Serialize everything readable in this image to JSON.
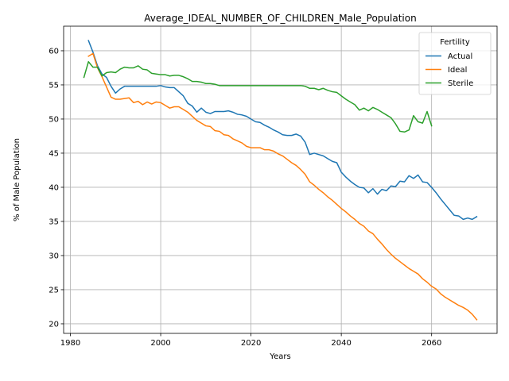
{
  "chart_data": {
    "type": "line",
    "title": "Average_IDEAL_NUMBER_OF_CHILDREN_Male_Population",
    "xlabel": "Years",
    "ylabel": "% of Male Population",
    "xlim": [
      1978.5,
      2074.5
    ],
    "ylim": [
      18.6,
      63.6
    ],
    "xticks": [
      1980,
      2000,
      2020,
      2040,
      2060
    ],
    "yticks": [
      20,
      25,
      30,
      35,
      40,
      45,
      50,
      55,
      60
    ],
    "grid": true,
    "legend": {
      "title": "Fertility",
      "placement": "top-right"
    },
    "series": [
      {
        "name": "Actual",
        "color": "#1f77b4",
        "points": [
          [
            1984,
            61.5
          ],
          [
            1985,
            59.8
          ],
          [
            1986,
            57.8
          ],
          [
            1987,
            56.6
          ],
          [
            1988,
            56.1
          ],
          [
            1989,
            54.8
          ],
          [
            1990,
            53.8
          ],
          [
            1991,
            54.4
          ],
          [
            1992,
            54.8
          ],
          [
            1993,
            54.8
          ],
          [
            1994,
            54.8
          ],
          [
            1995,
            54.8
          ],
          [
            1996,
            54.8
          ],
          [
            1997,
            54.8
          ],
          [
            1998,
            54.8
          ],
          [
            1999,
            54.8
          ],
          [
            2000,
            54.9
          ],
          [
            2001,
            54.7
          ],
          [
            2002,
            54.6
          ],
          [
            2003,
            54.6
          ],
          [
            2004,
            54.0
          ],
          [
            2005,
            53.4
          ],
          [
            2006,
            52.3
          ],
          [
            2007,
            51.9
          ],
          [
            2008,
            51.0
          ],
          [
            2009,
            51.6
          ],
          [
            2010,
            51.0
          ],
          [
            2011,
            50.8
          ],
          [
            2012,
            51.1
          ],
          [
            2013,
            51.1
          ],
          [
            2014,
            51.1
          ],
          [
            2015,
            51.2
          ],
          [
            2016,
            51.0
          ],
          [
            2017,
            50.7
          ],
          [
            2018,
            50.6
          ],
          [
            2019,
            50.4
          ],
          [
            2020,
            50.0
          ],
          [
            2021,
            49.6
          ],
          [
            2022,
            49.5
          ],
          [
            2023,
            49.1
          ],
          [
            2024,
            48.8
          ],
          [
            2025,
            48.4
          ],
          [
            2026,
            48.1
          ],
          [
            2027,
            47.7
          ],
          [
            2028,
            47.6
          ],
          [
            2029,
            47.6
          ],
          [
            2030,
            47.8
          ],
          [
            2031,
            47.5
          ],
          [
            2032,
            46.6
          ],
          [
            2033,
            44.8
          ],
          [
            2034,
            45.0
          ],
          [
            2035,
            44.8
          ],
          [
            2036,
            44.6
          ],
          [
            2037,
            44.2
          ],
          [
            2038,
            43.8
          ],
          [
            2039,
            43.6
          ],
          [
            2040,
            42.2
          ],
          [
            2041,
            41.5
          ],
          [
            2042,
            40.9
          ],
          [
            2043,
            40.4
          ],
          [
            2044,
            40.0
          ],
          [
            2045,
            39.9
          ],
          [
            2046,
            39.2
          ],
          [
            2047,
            39.8
          ],
          [
            2048,
            39.0
          ],
          [
            2049,
            39.7
          ],
          [
            2050,
            39.5
          ],
          [
            2051,
            40.2
          ],
          [
            2052,
            40.1
          ],
          [
            2053,
            40.9
          ],
          [
            2054,
            40.8
          ],
          [
            2055,
            41.7
          ],
          [
            2056,
            41.3
          ],
          [
            2057,
            41.8
          ],
          [
            2058,
            40.8
          ],
          [
            2059,
            40.7
          ],
          [
            2060,
            40.0
          ],
          [
            2061,
            39.2
          ],
          [
            2062,
            38.3
          ],
          [
            2063,
            37.5
          ],
          [
            2064,
            36.7
          ],
          [
            2065,
            35.9
          ],
          [
            2066,
            35.8
          ],
          [
            2067,
            35.3
          ],
          [
            2068,
            35.5
          ],
          [
            2069,
            35.3
          ],
          [
            2070,
            35.7
          ]
        ]
      },
      {
        "name": "Ideal",
        "color": "#ff7f0e",
        "points": [
          [
            1984,
            59.2
          ],
          [
            1985,
            59.6
          ],
          [
            1986,
            57.5
          ],
          [
            1987,
            56.2
          ],
          [
            1988,
            54.7
          ],
          [
            1989,
            53.2
          ],
          [
            1990,
            52.9
          ],
          [
            1991,
            52.9
          ],
          [
            1992,
            53.0
          ],
          [
            1993,
            53.1
          ],
          [
            1994,
            52.4
          ],
          [
            1995,
            52.6
          ],
          [
            1996,
            52.1
          ],
          [
            1997,
            52.5
          ],
          [
            1998,
            52.2
          ],
          [
            1999,
            52.5
          ],
          [
            2000,
            52.4
          ],
          [
            2001,
            52.0
          ],
          [
            2002,
            51.6
          ],
          [
            2003,
            51.8
          ],
          [
            2004,
            51.8
          ],
          [
            2005,
            51.4
          ],
          [
            2006,
            51.0
          ],
          [
            2007,
            50.4
          ],
          [
            2008,
            49.8
          ],
          [
            2009,
            49.4
          ],
          [
            2010,
            49.0
          ],
          [
            2011,
            48.9
          ],
          [
            2012,
            48.3
          ],
          [
            2013,
            48.2
          ],
          [
            2014,
            47.7
          ],
          [
            2015,
            47.6
          ],
          [
            2016,
            47.1
          ],
          [
            2017,
            46.8
          ],
          [
            2018,
            46.5
          ],
          [
            2019,
            46.0
          ],
          [
            2020,
            45.8
          ],
          [
            2021,
            45.8
          ],
          [
            2022,
            45.8
          ],
          [
            2023,
            45.5
          ],
          [
            2024,
            45.5
          ],
          [
            2025,
            45.3
          ],
          [
            2026,
            44.9
          ],
          [
            2027,
            44.6
          ],
          [
            2028,
            44.1
          ],
          [
            2029,
            43.6
          ],
          [
            2030,
            43.2
          ],
          [
            2031,
            42.6
          ],
          [
            2032,
            41.9
          ],
          [
            2033,
            40.8
          ],
          [
            2034,
            40.3
          ],
          [
            2035,
            39.7
          ],
          [
            2036,
            39.2
          ],
          [
            2037,
            38.6
          ],
          [
            2038,
            38.1
          ],
          [
            2039,
            37.5
          ],
          [
            2040,
            36.9
          ],
          [
            2041,
            36.4
          ],
          [
            2042,
            35.8
          ],
          [
            2043,
            35.3
          ],
          [
            2044,
            34.7
          ],
          [
            2045,
            34.3
          ],
          [
            2046,
            33.6
          ],
          [
            2047,
            33.2
          ],
          [
            2048,
            32.4
          ],
          [
            2049,
            31.7
          ],
          [
            2050,
            30.9
          ],
          [
            2051,
            30.2
          ],
          [
            2052,
            29.6
          ],
          [
            2053,
            29.1
          ],
          [
            2054,
            28.6
          ],
          [
            2055,
            28.1
          ],
          [
            2056,
            27.7
          ],
          [
            2057,
            27.3
          ],
          [
            2058,
            26.6
          ],
          [
            2059,
            26.1
          ],
          [
            2060,
            25.5
          ],
          [
            2061,
            25.1
          ],
          [
            2062,
            24.4
          ],
          [
            2063,
            23.9
          ],
          [
            2064,
            23.5
          ],
          [
            2065,
            23.1
          ],
          [
            2066,
            22.7
          ],
          [
            2067,
            22.4
          ],
          [
            2068,
            22.0
          ],
          [
            2069,
            21.4
          ],
          [
            2070,
            20.6
          ]
        ]
      },
      {
        "name": "Sterile",
        "color": "#2ca02c",
        "points": [
          [
            1983,
            56.1
          ],
          [
            1984,
            58.4
          ],
          [
            1985,
            57.6
          ],
          [
            1986,
            57.6
          ],
          [
            1987,
            56.3
          ],
          [
            1988,
            56.8
          ],
          [
            1989,
            56.9
          ],
          [
            1990,
            56.8
          ],
          [
            1991,
            57.3
          ],
          [
            1992,
            57.6
          ],
          [
            1993,
            57.5
          ],
          [
            1994,
            57.5
          ],
          [
            1995,
            57.8
          ],
          [
            1996,
            57.3
          ],
          [
            1997,
            57.2
          ],
          [
            1998,
            56.7
          ],
          [
            1999,
            56.6
          ],
          [
            2000,
            56.5
          ],
          [
            2001,
            56.5
          ],
          [
            2002,
            56.3
          ],
          [
            2003,
            56.4
          ],
          [
            2004,
            56.4
          ],
          [
            2005,
            56.2
          ],
          [
            2006,
            55.9
          ],
          [
            2007,
            55.5
          ],
          [
            2008,
            55.5
          ],
          [
            2009,
            55.4
          ],
          [
            2010,
            55.2
          ],
          [
            2011,
            55.2
          ],
          [
            2012,
            55.1
          ],
          [
            2013,
            54.9
          ],
          [
            2014,
            54.9
          ],
          [
            2015,
            54.9
          ],
          [
            2016,
            54.9
          ],
          [
            2017,
            54.9
          ],
          [
            2018,
            54.9
          ],
          [
            2019,
            54.9
          ],
          [
            2020,
            54.9
          ],
          [
            2021,
            54.9
          ],
          [
            2022,
            54.9
          ],
          [
            2023,
            54.9
          ],
          [
            2024,
            54.9
          ],
          [
            2025,
            54.9
          ],
          [
            2026,
            54.9
          ],
          [
            2027,
            54.9
          ],
          [
            2028,
            54.9
          ],
          [
            2029,
            54.9
          ],
          [
            2030,
            54.9
          ],
          [
            2031,
            54.9
          ],
          [
            2032,
            54.8
          ],
          [
            2033,
            54.5
          ],
          [
            2034,
            54.5
          ],
          [
            2035,
            54.3
          ],
          [
            2036,
            54.5
          ],
          [
            2037,
            54.2
          ],
          [
            2038,
            54.0
          ],
          [
            2039,
            53.9
          ],
          [
            2040,
            53.4
          ],
          [
            2041,
            52.9
          ],
          [
            2042,
            52.5
          ],
          [
            2043,
            52.1
          ],
          [
            2044,
            51.3
          ],
          [
            2045,
            51.6
          ],
          [
            2046,
            51.2
          ],
          [
            2047,
            51.7
          ],
          [
            2048,
            51.4
          ],
          [
            2049,
            51.0
          ],
          [
            2050,
            50.6
          ],
          [
            2051,
            50.2
          ],
          [
            2052,
            49.3
          ],
          [
            2053,
            48.2
          ],
          [
            2054,
            48.1
          ],
          [
            2055,
            48.4
          ],
          [
            2056,
            50.5
          ],
          [
            2057,
            49.6
          ],
          [
            2058,
            49.4
          ],
          [
            2059,
            51.1
          ],
          [
            2060,
            49.0
          ]
        ]
      }
    ]
  }
}
